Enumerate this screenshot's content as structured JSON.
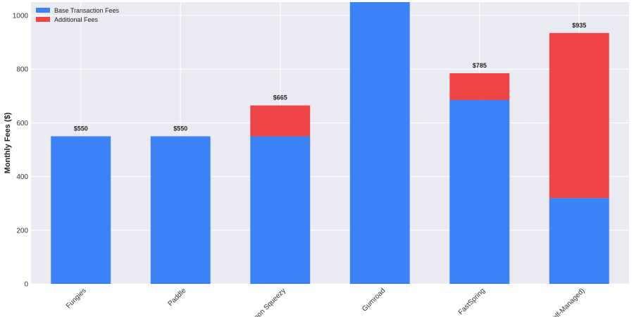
{
  "chart_data": {
    "type": "bar",
    "stacked": true,
    "title": "",
    "xlabel": "",
    "ylabel": "Monthly Fees ($)",
    "ylim": [
      0,
      1050
    ],
    "yticks": [
      0,
      200,
      400,
      600,
      800,
      1000
    ],
    "categories": [
      "Fungies",
      "Paddle",
      "Lemon Squeezy",
      "Gumroad",
      "FastSpring",
      "(Self-Managed)"
    ],
    "series": [
      {
        "name": "Base Transaction Fees",
        "color": "#3b82f6",
        "values": [
          550,
          550,
          550,
          1050,
          685,
          320
        ]
      },
      {
        "name": "Additional Fees",
        "color": "#ef4444",
        "values": [
          0,
          0,
          115,
          0,
          100,
          615
        ]
      }
    ],
    "data_labels": [
      "$550",
      "$550",
      "$665",
      "",
      "$785",
      "$935"
    ],
    "legend_position": "top-left",
    "grid": true
  }
}
